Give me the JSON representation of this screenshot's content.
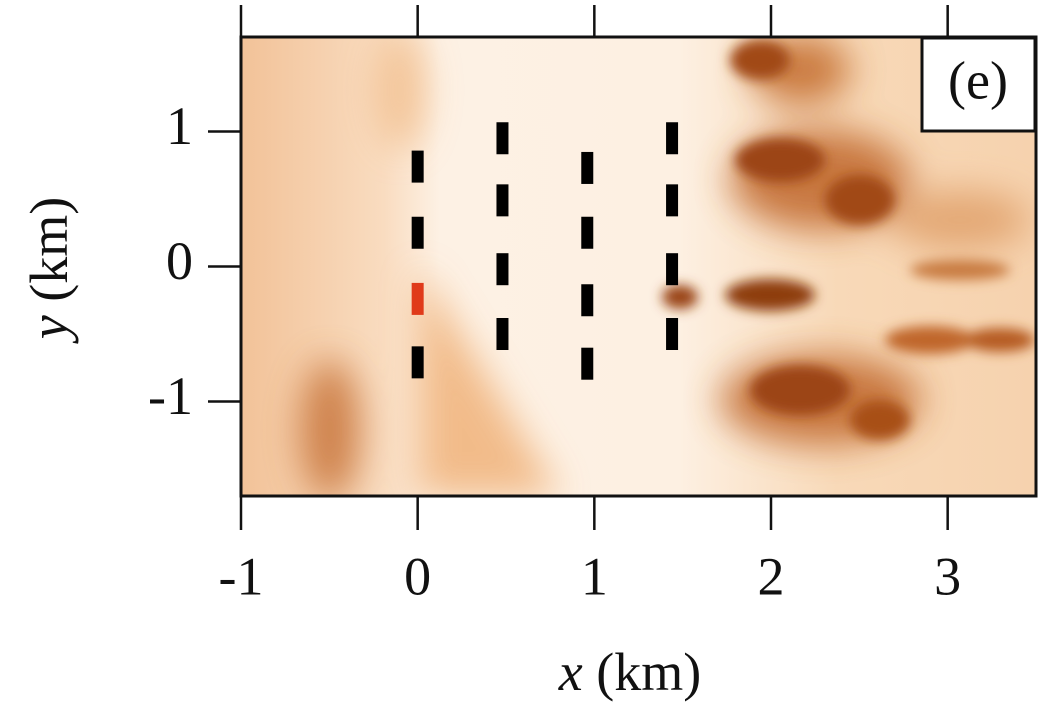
{
  "chart_data": {
    "type": "scatter",
    "annotation": "(e)",
    "x_label": "x",
    "x_unit": "(km)",
    "y_label": "y",
    "y_unit": "(km)",
    "xlim": [
      -1,
      3.5
    ],
    "ylim": [
      -1.7,
      1.7
    ],
    "xticks": [
      -1,
      0,
      1,
      2,
      3
    ],
    "yticks": [
      -1,
      0,
      1
    ],
    "series": [
      {
        "color": "#000000",
        "x": [
          0,
          0,
          0,
          0.48,
          0.48,
          0.48,
          0.48,
          0.96,
          0.96,
          0.96,
          0.96,
          1.44,
          1.44,
          1.44,
          1.44
        ],
        "y": [
          0.74,
          0.25,
          -0.71,
          0.95,
          0.49,
          -0.02,
          -0.5,
          0.73,
          0.25,
          -0.25,
          -0.72,
          0.95,
          0.49,
          -0.02,
          -0.5
        ]
      },
      {
        "color": "#e03a1a",
        "x": [
          0
        ],
        "y": [
          -0.24
        ]
      }
    ]
  }
}
